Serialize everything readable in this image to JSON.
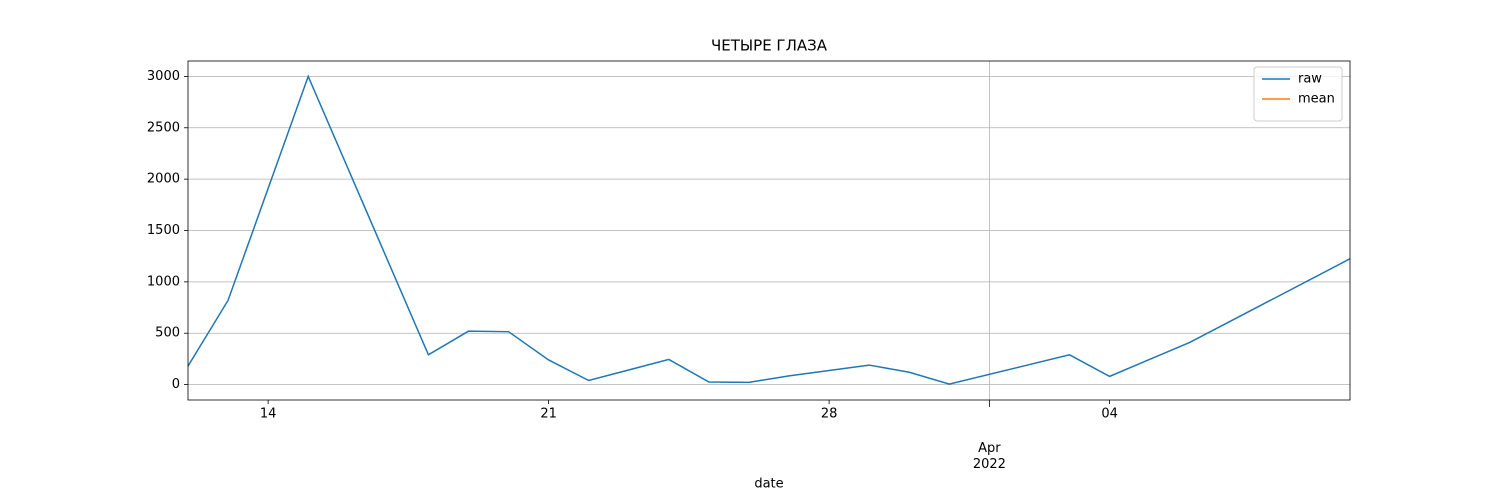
{
  "chart_data": {
    "type": "line",
    "title": "ЧЕТЫРЕ ГЛАЗА",
    "x_label": "date",
    "x": [
      "2022-03-12",
      "2022-03-13",
      "2022-03-15",
      "2022-03-18",
      "2022-03-19",
      "2022-03-20",
      "2022-03-21",
      "2022-03-22",
      "2022-03-24",
      "2022-03-25",
      "2022-03-26",
      "2022-03-27",
      "2022-03-29",
      "2022-03-30",
      "2022-03-31",
      "2022-04-03",
      "2022-04-04",
      "2022-04-06",
      "2022-04-10"
    ],
    "series": [
      {
        "name": "raw",
        "color": "#1f77b4",
        "values": [
          180,
          820,
          3000,
          290,
          520,
          515,
          240,
          40,
          245,
          25,
          22,
          85,
          190,
          120,
          5,
          290,
          80,
          410,
          1225
        ]
      },
      {
        "name": "mean",
        "color": "#ff7f0e",
        "values": [
          null,
          null,
          null,
          null,
          null,
          null,
          null,
          null,
          null,
          null,
          null,
          null,
          null,
          null,
          null,
          null,
          null,
          null,
          null
        ]
      }
    ],
    "xlim": [
      "2022-03-12",
      "2022-04-10"
    ],
    "xticks": [
      {
        "value": "2022-04-01",
        "label": "Apr\n2022"
      }
    ],
    "xminorticks": [
      {
        "value": "2022-03-14",
        "label": "14"
      },
      {
        "value": "2022-03-21",
        "label": "21"
      },
      {
        "value": "2022-03-28",
        "label": "28"
      },
      {
        "value": "2022-04-04",
        "label": "04"
      }
    ],
    "ylim": [
      -150,
      3150
    ],
    "yticks": [
      0,
      500,
      1000,
      1500,
      2000,
      2500,
      3000
    ],
    "grid": true,
    "legend": "upper right"
  }
}
